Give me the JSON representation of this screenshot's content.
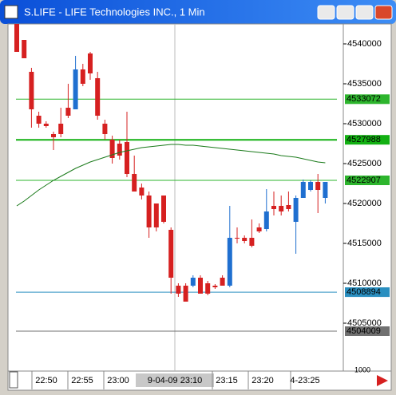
{
  "window_title": "S.LIFE - LIFE Technologies INC., 1 Min",
  "chart_data": {
    "type": "candlestick",
    "up_color": "#1f6fd0",
    "down_color": "#d62020",
    "open": [
      45.425,
      45.405,
      45.365,
      45.31,
      45.3,
      45.287,
      45.3,
      45.32,
      45.318,
      45.368,
      45.388,
      45.357,
      45.3,
      45.28,
      45.275,
      45.277,
      45.237,
      45.22,
      45.21,
      45.2,
      45.21,
      45.167,
      45.097,
      45.097,
      45.097,
      45.107,
      45.1,
      45.097,
      45.107,
      45.097,
      45.157,
      45.157,
      45.157,
      45.17,
      45.168,
      45.197,
      45.197,
      45.198,
      45.177,
      45.207,
      45.217,
      45.227,
      45.207
    ],
    "high": [
      45.425,
      45.405,
      45.37,
      45.315,
      45.303,
      45.29,
      45.32,
      45.35,
      45.385,
      45.375,
      45.39,
      45.365,
      45.305,
      45.285,
      45.28,
      45.315,
      45.26,
      45.225,
      45.215,
      45.2,
      45.21,
      45.17,
      45.1,
      45.1,
      45.11,
      45.11,
      45.103,
      45.099,
      45.11,
      45.197,
      45.17,
      45.16,
      45.18,
      45.175,
      45.218,
      45.215,
      45.21,
      45.215,
      45.21,
      45.23,
      45.229,
      45.237,
      45.227
    ],
    "low": [
      45.39,
      45.382,
      45.295,
      45.295,
      45.295,
      45.267,
      45.283,
      45.307,
      45.318,
      45.347,
      45.355,
      45.305,
      45.28,
      45.25,
      45.255,
      45.233,
      45.215,
      45.205,
      45.157,
      45.165,
      45.175,
      45.087,
      45.083,
      45.077,
      45.095,
      45.087,
      45.085,
      45.093,
      45.097,
      45.095,
      45.15,
      45.15,
      45.145,
      45.163,
      45.165,
      45.185,
      45.185,
      45.19,
      45.137,
      45.207,
      45.215,
      45.188,
      45.2
    ],
    "close": [
      45.39,
      45.382,
      45.318,
      45.3,
      45.297,
      45.283,
      45.287,
      45.31,
      45.368,
      45.35,
      45.363,
      45.31,
      45.287,
      45.257,
      45.26,
      45.237,
      45.215,
      45.21,
      45.17,
      45.17,
      45.177,
      45.107,
      45.087,
      45.077,
      45.107,
      45.087,
      45.087,
      45.095,
      45.097,
      45.157,
      45.156,
      45.153,
      45.147,
      45.165,
      45.19,
      45.193,
      45.19,
      45.193,
      45.207,
      45.227,
      45.227,
      45.217,
      45.227
    ],
    "overlay": {
      "color": "#1a7a1a",
      "values": [
        45.197,
        45.203,
        45.21,
        45.217,
        45.223,
        45.229,
        45.234,
        45.239,
        45.244,
        45.248,
        45.252,
        45.255,
        45.258,
        45.261,
        45.264,
        45.266,
        45.268,
        45.27,
        45.271,
        45.272,
        45.273,
        45.274,
        45.274,
        45.273,
        45.273,
        45.272,
        45.271,
        45.27,
        45.269,
        45.268,
        45.267,
        45.266,
        45.265,
        45.264,
        45.263,
        45.262,
        45.26,
        45.259,
        45.258,
        45.256,
        45.254,
        45.252,
        45.251
      ]
    },
    "ylim": [
      44.99,
      45.425
    ],
    "yticks": [
      {
        "value": 45.05,
        "label": "4505000"
      },
      {
        "value": 45.1,
        "label": "4510000"
      },
      {
        "value": 45.15,
        "label": "4515000"
      },
      {
        "value": 45.2,
        "label": "4520000"
      },
      {
        "value": 45.25,
        "label": "4525000"
      },
      {
        "value": 45.3,
        "label": "4530000"
      },
      {
        "value": 45.35,
        "label": "4535000"
      },
      {
        "value": 45.4,
        "label": "4540000"
      }
    ],
    "price_lines": [
      {
        "value": 45.3307,
        "label": "4533072",
        "color": "#2db52d",
        "width": 1
      },
      {
        "value": 45.2798,
        "label": "4527988",
        "color": "#12b012",
        "width": 2
      },
      {
        "value": 45.229,
        "label": "4522907",
        "color": "#2db52d",
        "width": 1
      },
      {
        "value": 45.0889,
        "label": "4508894",
        "color": "#2a8fc0",
        "width": 1
      },
      {
        "value": 45.04,
        "label": "4504009",
        "color": "#707070",
        "width": 1
      }
    ],
    "x_labels": [
      "22:50",
      "22:55",
      "23:00",
      "23:15",
      "23:20",
      "4-23:25"
    ],
    "cursor_label": "9-04-09 23:10",
    "scale_label": "1000"
  }
}
